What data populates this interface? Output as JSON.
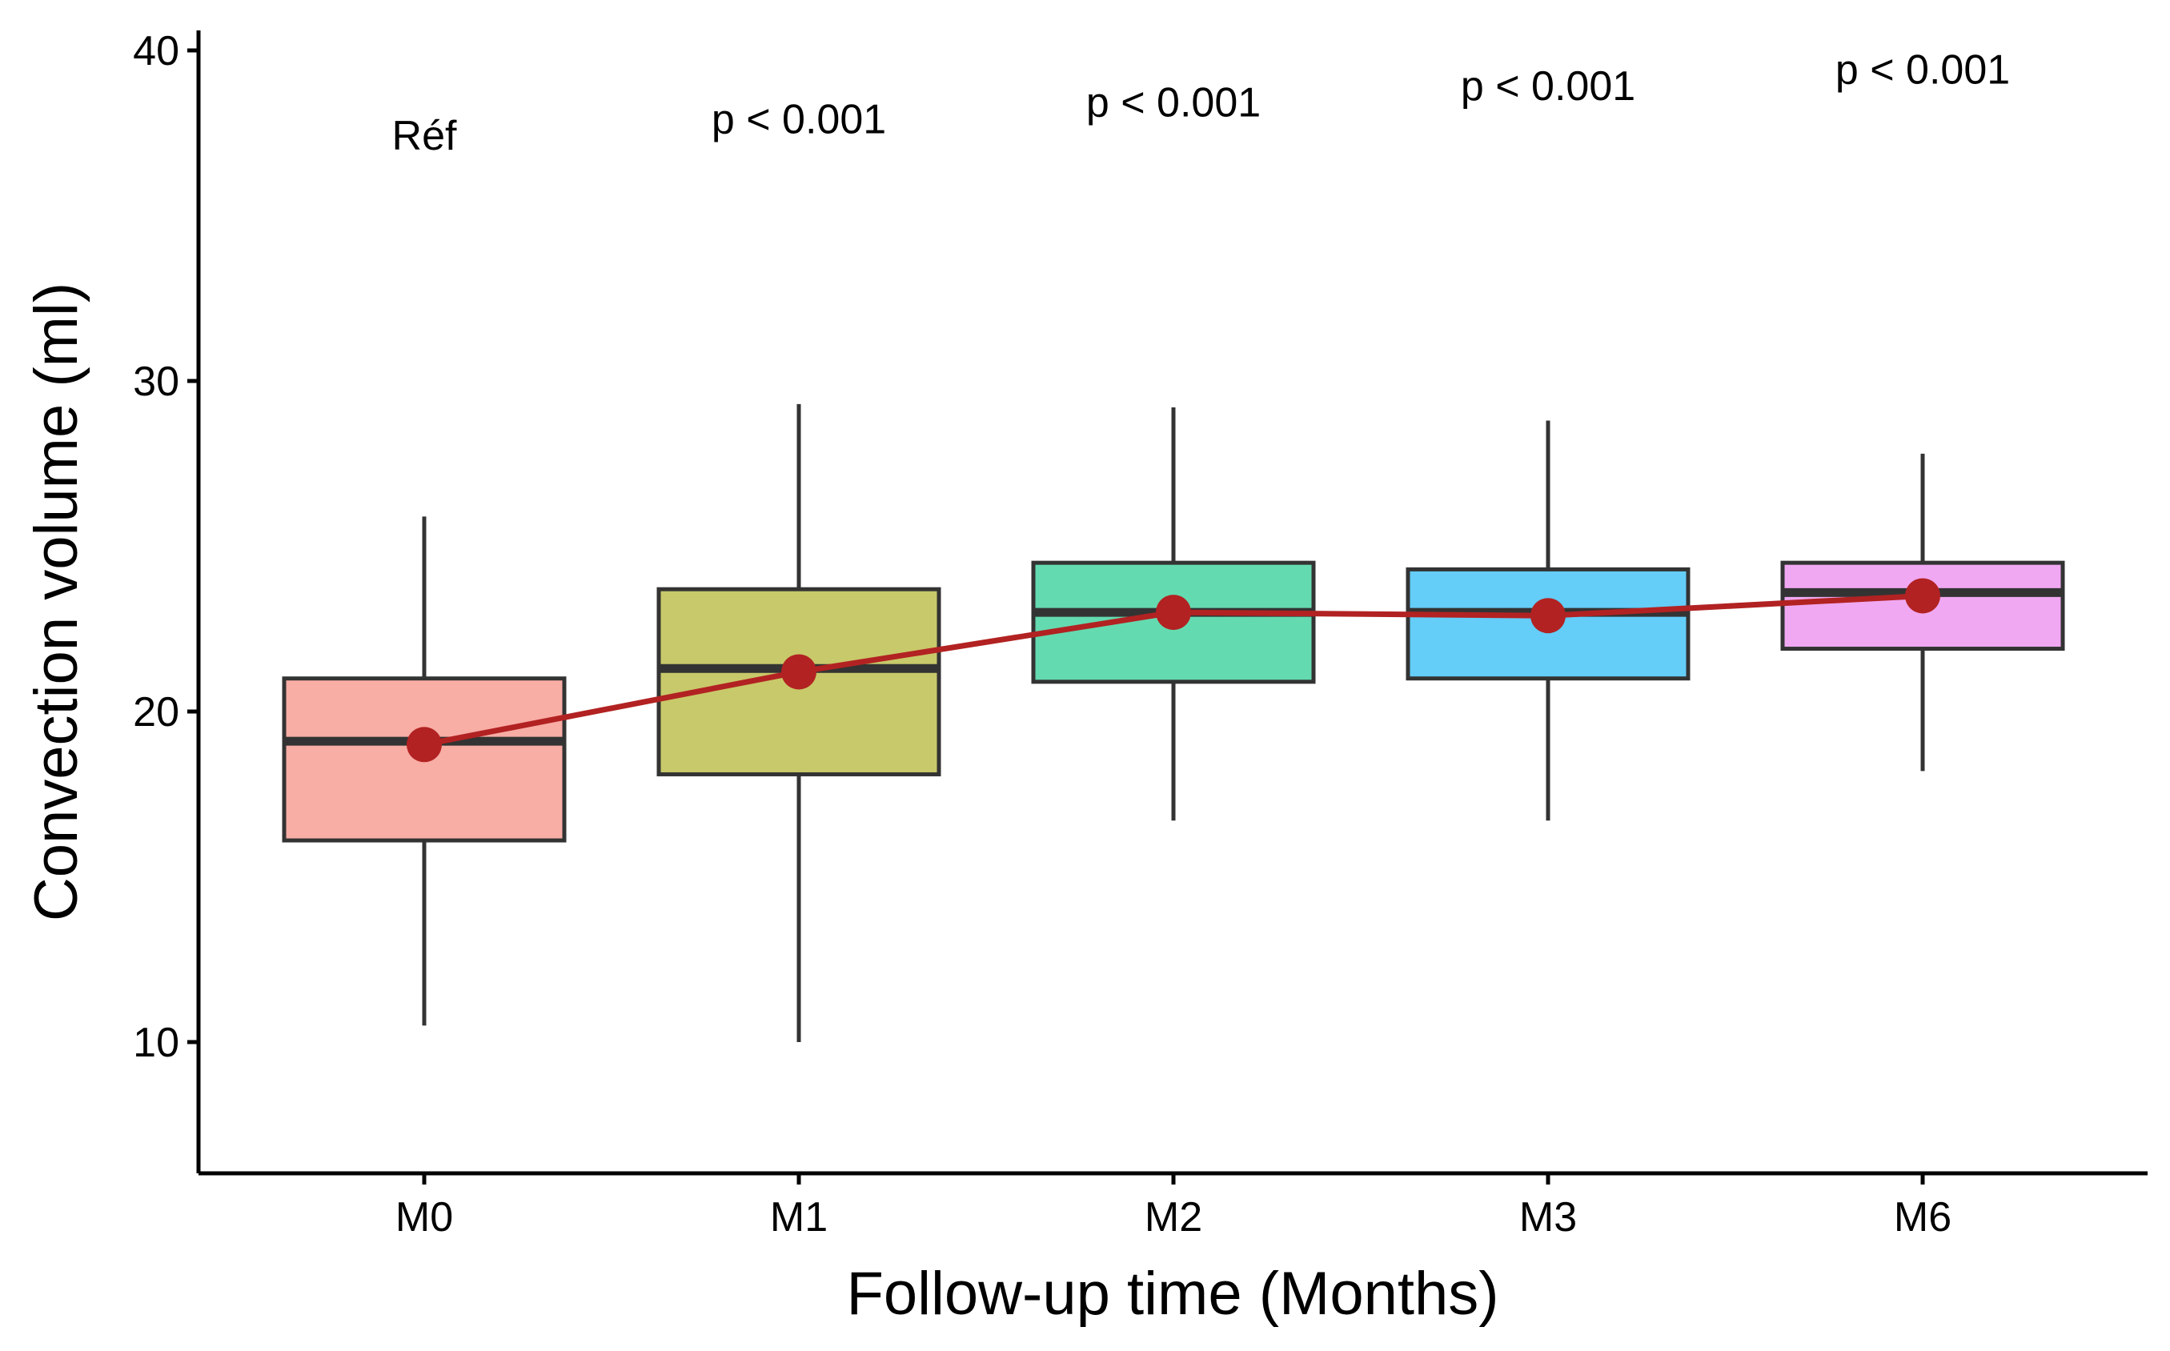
{
  "chart_data": {
    "type": "box",
    "xlabel": "Follow-up time (Months)",
    "ylabel": "Convection volume (ml)",
    "ylim": [
      6,
      40.5
    ],
    "yticks": [
      10,
      20,
      30,
      40
    ],
    "grid": false,
    "legend": "none",
    "categories": [
      "M0",
      "M1",
      "M2",
      "M3",
      "M6"
    ],
    "boxes": [
      {
        "category": "M0",
        "whisker_low": 10.5,
        "q1": 16.1,
        "median": 19.1,
        "q3": 21.0,
        "whisker_high": 25.9,
        "fill": "#F8ADA5"
      },
      {
        "category": "M1",
        "whisker_low": 10.0,
        "q1": 18.1,
        "median": 21.3,
        "q3": 23.7,
        "whisker_high": 29.3,
        "fill": "#C8C96A"
      },
      {
        "category": "M2",
        "whisker_low": 16.7,
        "q1": 20.9,
        "median": 23.0,
        "q3": 24.5,
        "whisker_high": 29.2,
        "fill": "#64DAB0"
      },
      {
        "category": "M3",
        "whisker_low": 16.7,
        "q1": 21.0,
        "median": 23.0,
        "q3": 24.3,
        "whisker_high": 28.8,
        "fill": "#64CDF8"
      },
      {
        "category": "M6",
        "whisker_low": 18.2,
        "q1": 21.9,
        "median": 23.6,
        "q3": 24.5,
        "whisker_high": 27.8,
        "fill": "#F0A8F2"
      }
    ],
    "trend_line": {
      "name": "mean",
      "color": "#B22222",
      "values": [
        19.0,
        21.2,
        23.0,
        22.9,
        23.5
      ]
    },
    "annotations": [
      {
        "category": "M0",
        "text": "Réf",
        "y": 37.0
      },
      {
        "category": "M1",
        "text": "p < 0.001",
        "y": 37.5
      },
      {
        "category": "M2",
        "text": "p < 0.001",
        "y": 38.0
      },
      {
        "category": "M3",
        "text": "p < 0.001",
        "y": 38.5
      },
      {
        "category": "M6",
        "text": "p < 0.001",
        "y": 39.0
      }
    ]
  }
}
